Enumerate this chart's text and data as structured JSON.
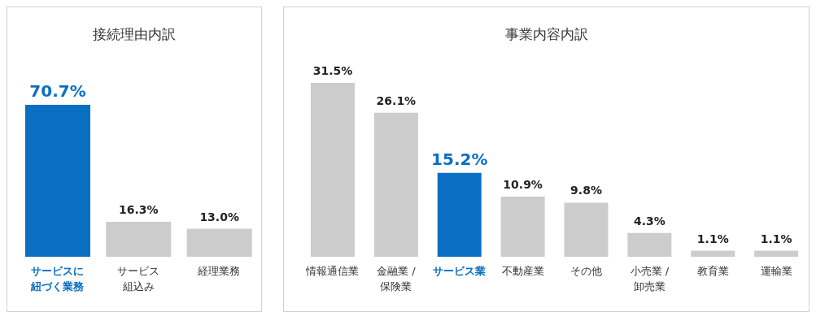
{
  "chart_data": [
    {
      "type": "bar",
      "title": "接続理由内訳",
      "categories": [
        "サービスに紐づく業務",
        "サービス組込み",
        "経理業務"
      ],
      "values": [
        70.7,
        16.3,
        13.0
      ],
      "colors": [
        "#0a6fc2",
        "#cccccc",
        "#cccccc"
      ],
      "value_labels": [
        "70.7%",
        "16.3%",
        "13.0%"
      ],
      "grid": false,
      "legend": false
    },
    {
      "type": "bar",
      "title": "事業内容内訳",
      "categories": [
        "情報通信業",
        "金融業 / 保険業",
        "サービス業",
        "不動産業",
        "その他",
        "小売業 / 卸売業",
        "教育業",
        "運輸業"
      ],
      "values": [
        31.5,
        26.1,
        15.2,
        10.9,
        9.8,
        4.3,
        1.1,
        1.1
      ],
      "colors": [
        "#cccccc",
        "#cccccc",
        "#0a6fc2",
        "#cccccc",
        "#cccccc",
        "#cccccc",
        "#cccccc",
        "#cccccc"
      ],
      "value_labels": [
        "31.5%",
        "26.1%",
        "15.2%",
        "10.9%",
        "9.8%",
        "4.3%",
        "1.1%",
        "1.1%"
      ],
      "grid": false,
      "legend": false
    }
  ]
}
